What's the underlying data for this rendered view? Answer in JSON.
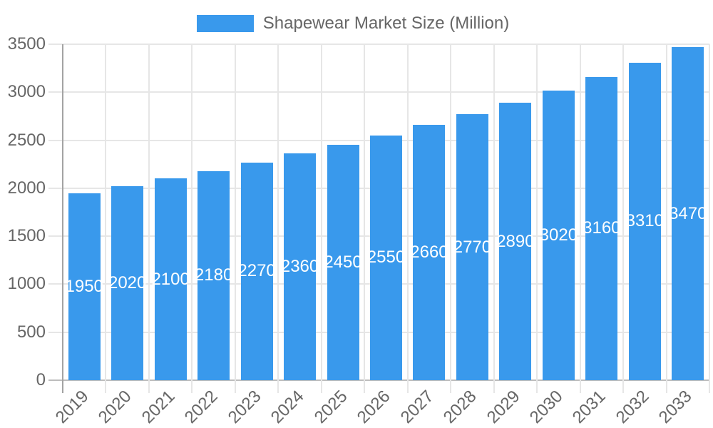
{
  "chart_data": {
    "type": "bar",
    "title": "",
    "series_label": "Shapewear Market Size (Million)",
    "categories": [
      "2019",
      "2020",
      "2021",
      "2022",
      "2023",
      "2024",
      "2025",
      "2026",
      "2027",
      "2028",
      "2029",
      "2030",
      "2031",
      "2032",
      "2033"
    ],
    "values": [
      1950,
      2020,
      2100,
      2180,
      2270,
      2360,
      2450,
      2550,
      2660,
      2770,
      2890,
      3020,
      3160,
      3310,
      3470
    ],
    "xlabel": "",
    "ylabel": "",
    "ylim": [
      0,
      3500
    ],
    "ytick_step": 500,
    "grid": true,
    "legend_position": "top",
    "value_labels": "inside-center",
    "colors": {
      "bar": "#3999EC",
      "grid_line": "#e6e6e6",
      "zero_line_x": "#bdbdbd",
      "zero_line_y": "#a3a3a3",
      "axis_text": "#666666",
      "value_label_text": "#ffffff",
      "background": "#ffffff"
    }
  }
}
